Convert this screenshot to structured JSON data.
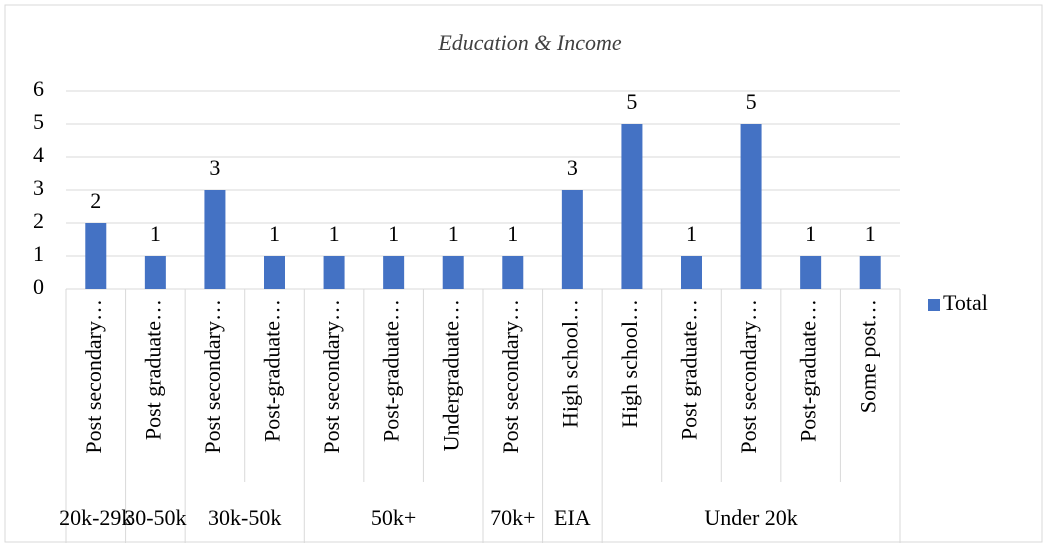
{
  "chart_data": {
    "type": "bar",
    "title": "Education & Income",
    "groups": [
      {
        "name": "20k-29k",
        "categories": [
          "Post secondary…"
        ]
      },
      {
        "name": "30-50k",
        "categories": [
          "Post graduate…"
        ]
      },
      {
        "name": "30k-50k",
        "categories": [
          "Post secondary…",
          "Post-graduate…"
        ]
      },
      {
        "name": "50k+",
        "categories": [
          "Post secondary…",
          "Post-graduate…",
          "Undergraduate…"
        ]
      },
      {
        "name": "70k+",
        "categories": [
          "Post secondary…"
        ]
      },
      {
        "name": "EIA",
        "categories": [
          "High school…"
        ]
      },
      {
        "name": "Under 20k",
        "categories": [
          "High school…",
          "Post graduate…",
          "Post secondary…",
          "Post-graduate…",
          "Some post…"
        ]
      }
    ],
    "series": [
      {
        "name": "Total",
        "color": "#4472c4",
        "values": [
          2,
          1,
          3,
          1,
          1,
          1,
          1,
          1,
          3,
          5,
          1,
          5,
          1,
          1
        ]
      }
    ],
    "ylim": [
      0,
      6
    ],
    "yticks": [
      0,
      1,
      2,
      3,
      4,
      5,
      6
    ],
    "grid": true,
    "data_labels": true,
    "legend": "right"
  }
}
